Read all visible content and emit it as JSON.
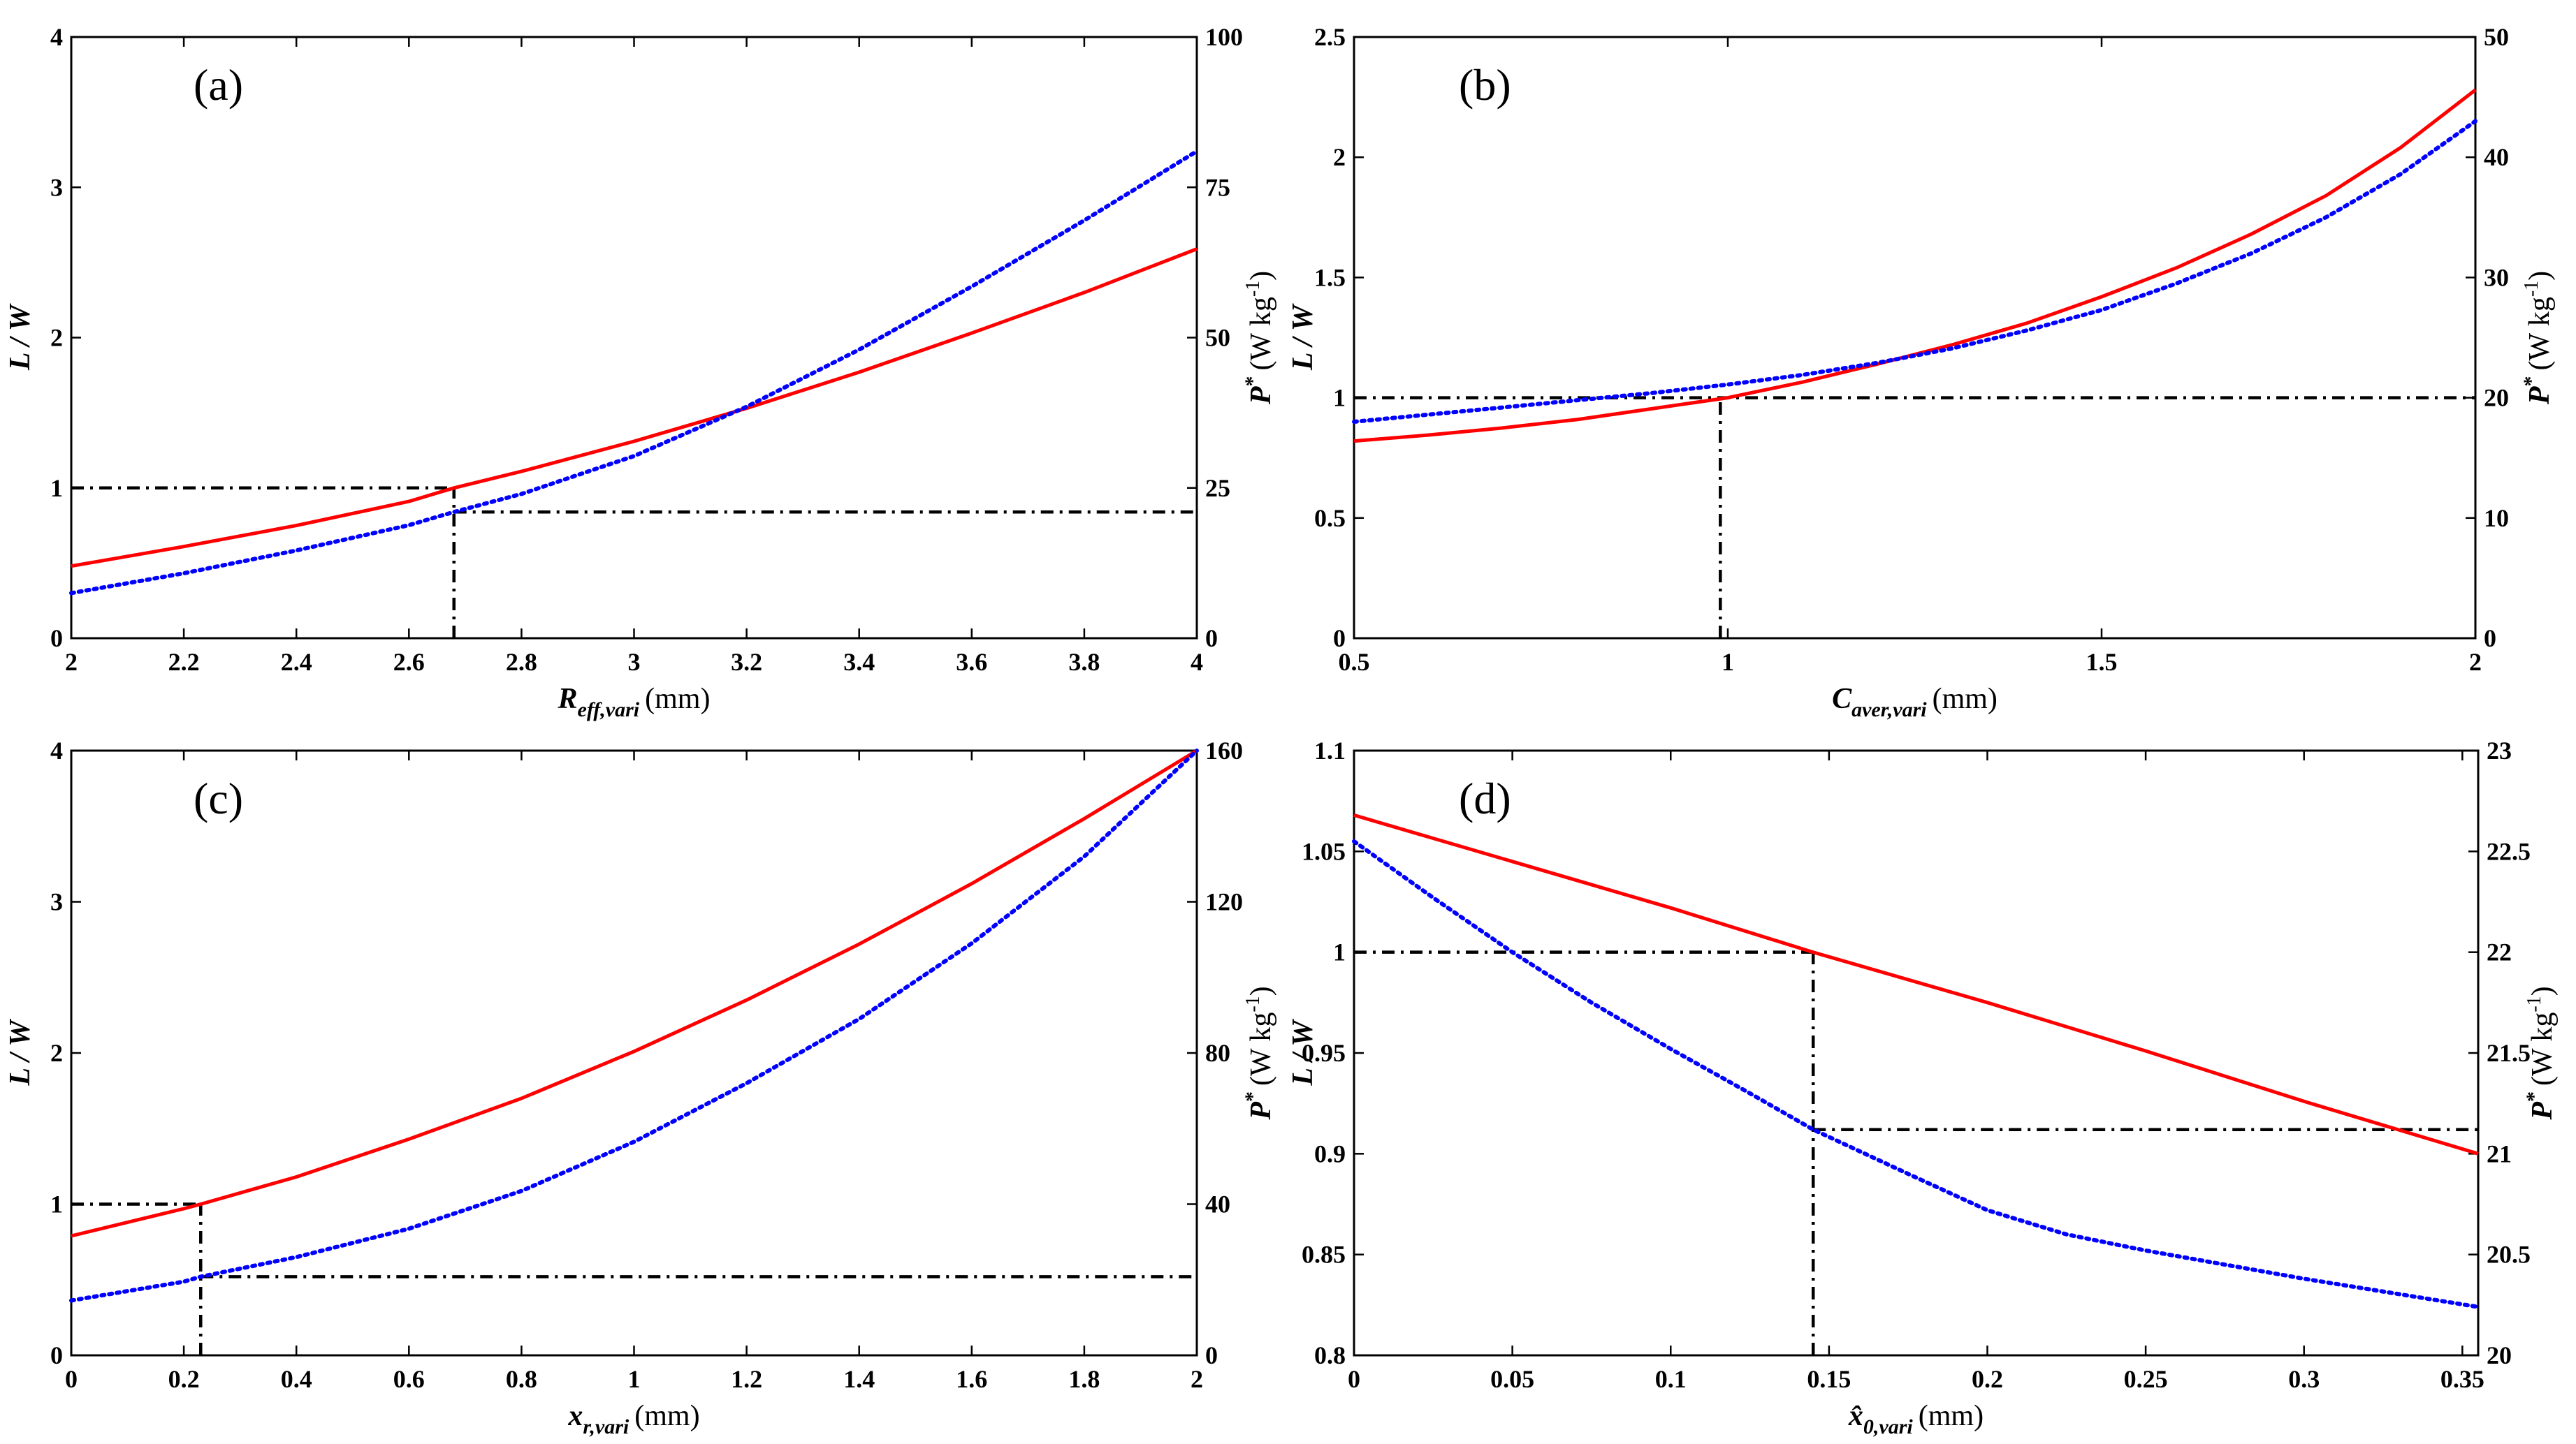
{
  "chart_data": [
    {
      "type": "line",
      "label": "(a)",
      "xlabel": {
        "main": "R",
        "sub": "eff,vari",
        "unit": "(mm)"
      },
      "ylabel_left": "L / W",
      "ylabel_right": {
        "main": "P",
        "sup": "*",
        "unit": "(W kg",
        "unit_sup": "-1",
        "unit_end": ")"
      },
      "xlim": [
        2,
        4
      ],
      "ylim_left": [
        0,
        4
      ],
      "ylim_right": [
        0,
        100
      ],
      "x_ticks": [
        "2",
        "2.2",
        "2.4",
        "2.6",
        "2.8",
        "3",
        "3.2",
        "3.4",
        "3.6",
        "3.8",
        "4"
      ],
      "x_tick_values": [
        2,
        2.2,
        2.4,
        2.6,
        2.8,
        3,
        3.2,
        3.4,
        3.6,
        3.8,
        4
      ],
      "y_ticks_left": [
        "0",
        "1",
        "2",
        "3",
        "4"
      ],
      "y_tick_values_left": [
        0,
        1,
        2,
        3,
        4
      ],
      "y_ticks_right": [
        "0",
        "25",
        "50",
        "75",
        "100"
      ],
      "y_tick_values_right": [
        0,
        25,
        50,
        75,
        100
      ],
      "series": [
        {
          "name": "L / W",
          "axis": "left",
          "style": "solid",
          "color": "#ff0000",
          "x": [
            2,
            2.2,
            2.4,
            2.6,
            2.68,
            2.8,
            3.0,
            3.2,
            3.4,
            3.6,
            3.8,
            4.0
          ],
          "y": [
            0.48,
            0.61,
            0.75,
            0.91,
            1.0,
            1.11,
            1.31,
            1.53,
            1.77,
            2.03,
            2.3,
            2.59
          ]
        },
        {
          "name": "P*",
          "axis": "right",
          "style": "dotted",
          "color": "#0000ff",
          "x": [
            2,
            2.2,
            2.4,
            2.6,
            2.68,
            2.8,
            3.0,
            3.2,
            3.4,
            3.6,
            3.8,
            4.0
          ],
          "y": [
            7.5,
            10.8,
            14.6,
            18.8,
            21.0,
            24.0,
            30.3,
            38.5,
            48.0,
            58.5,
            69.5,
            81.0
          ]
        }
      ],
      "reference_lines": [
        {
          "axis": "left",
          "x0": 2,
          "y0": 1.0,
          "x1": 2.68,
          "y1": 1.0
        },
        {
          "axis": "right",
          "x0": 2.68,
          "y0": 21.0,
          "x1": 4.0,
          "y1": 21.0
        },
        {
          "axis": "left",
          "x0": 2.68,
          "y0": 0,
          "x1": 2.68,
          "y1": 1.0
        }
      ]
    },
    {
      "type": "line",
      "label": "(b)",
      "xlabel": {
        "main": "C",
        "sub": "aver,vari",
        "unit": "(mm)"
      },
      "ylabel_left": "L / W",
      "ylabel_right": {
        "main": "P",
        "sup": "*",
        "unit": "(W kg",
        "unit_sup": "-1",
        "unit_end": ")"
      },
      "xlim": [
        0.5,
        2
      ],
      "ylim_left": [
        0,
        2.5
      ],
      "ylim_right": [
        0,
        50
      ],
      "x_ticks": [
        "0.5",
        "1",
        "1.5",
        "2"
      ],
      "x_tick_values": [
        0.5,
        1,
        1.5,
        2
      ],
      "y_ticks_left": [
        "0",
        "0.5",
        "1",
        "1.5",
        "2",
        "2.5"
      ],
      "y_tick_values_left": [
        0,
        0.5,
        1,
        1.5,
        2,
        2.5
      ],
      "y_ticks_right": [
        "0",
        "10",
        "20",
        "30",
        "40",
        "50"
      ],
      "y_tick_values_right": [
        0,
        10,
        20,
        30,
        40,
        50
      ],
      "series": [
        {
          "name": "L / W",
          "axis": "left",
          "style": "solid",
          "color": "#ff0000",
          "x": [
            0.5,
            0.6,
            0.7,
            0.8,
            0.9,
            1.0,
            1.1,
            1.2,
            1.3,
            1.4,
            1.5,
            1.6,
            1.7,
            1.8,
            1.9,
            2.0
          ],
          "y": [
            0.82,
            0.845,
            0.875,
            0.91,
            0.955,
            1.0,
            1.065,
            1.14,
            1.22,
            1.31,
            1.42,
            1.54,
            1.68,
            1.84,
            2.04,
            2.28
          ]
        },
        {
          "name": "P*",
          "axis": "right",
          "style": "dotted",
          "color": "#0000ff",
          "x": [
            0.5,
            0.6,
            0.7,
            0.8,
            0.9,
            1.0,
            1.1,
            1.2,
            1.3,
            1.4,
            1.5,
            1.6,
            1.7,
            1.8,
            1.9,
            2.0
          ],
          "y": [
            18.0,
            18.6,
            19.2,
            19.8,
            20.4,
            21.1,
            21.9,
            22.9,
            24.1,
            25.6,
            27.3,
            29.5,
            32.0,
            35.0,
            38.6,
            43.0
          ]
        }
      ],
      "reference_lines": [
        {
          "axis": "left",
          "x0": 0.5,
          "y0": 1.0,
          "x1": 2.0,
          "y1": 1.0
        },
        {
          "axis": "left",
          "x0": 0.99,
          "y0": 0,
          "x1": 0.99,
          "y1": 1.0
        }
      ]
    },
    {
      "type": "line",
      "label": "(c)",
      "xlabel": {
        "main": "x",
        "sub": "r,vari",
        "unit": "(mm)"
      },
      "ylabel_left": "L / W",
      "ylabel_right": {
        "main": "P",
        "sup": "*",
        "unit": "(W kg",
        "unit_sup": "-1",
        "unit_end": ")"
      },
      "xlim": [
        0,
        2
      ],
      "ylim_left": [
        0,
        4
      ],
      "ylim_right": [
        0,
        160
      ],
      "x_ticks": [
        "0",
        "0.2",
        "0.4",
        "0.6",
        "0.8",
        "1",
        "1.2",
        "1.4",
        "1.6",
        "1.8",
        "2"
      ],
      "x_tick_values": [
        0,
        0.2,
        0.4,
        0.6,
        0.8,
        1,
        1.2,
        1.4,
        1.6,
        1.8,
        2
      ],
      "y_ticks_left": [
        "0",
        "1",
        "2",
        "3",
        "4"
      ],
      "y_tick_values_left": [
        0,
        1,
        2,
        3,
        4
      ],
      "y_ticks_right": [
        "0",
        "40",
        "80",
        "120",
        "160"
      ],
      "y_tick_values_right": [
        0,
        40,
        80,
        120,
        160
      ],
      "series": [
        {
          "name": "L / W",
          "axis": "left",
          "style": "solid",
          "color": "#ff0000",
          "x": [
            0,
            0.2,
            0.23,
            0.4,
            0.6,
            0.8,
            1.0,
            1.2,
            1.4,
            1.6,
            1.8,
            2.0
          ],
          "y": [
            0.79,
            0.97,
            1.0,
            1.18,
            1.43,
            1.7,
            2.01,
            2.35,
            2.72,
            3.12,
            3.55,
            4.0
          ]
        },
        {
          "name": "P*",
          "axis": "right",
          "style": "dotted",
          "color": "#0000ff",
          "x": [
            0,
            0.2,
            0.23,
            0.4,
            0.6,
            0.8,
            1.0,
            1.2,
            1.4,
            1.6,
            1.8,
            2.0
          ],
          "y": [
            14.5,
            19.5,
            20.8,
            26.0,
            33.5,
            43.5,
            56.5,
            72.0,
            89.0,
            109.0,
            132.0,
            160.0
          ]
        }
      ],
      "reference_lines": [
        {
          "axis": "left",
          "x0": 0,
          "y0": 1.0,
          "x1": 0.23,
          "y1": 1.0
        },
        {
          "axis": "right",
          "x0": 0.23,
          "y0": 20.8,
          "x1": 2.0,
          "y1": 20.8
        },
        {
          "axis": "left",
          "x0": 0.23,
          "y0": 0,
          "x1": 0.23,
          "y1": 1.0
        }
      ]
    },
    {
      "type": "line",
      "label": "(d)",
      "xlabel": {
        "main": "x̂",
        "sub": "0,vari",
        "unit": "(mm)"
      },
      "ylabel_left": "L / W",
      "ylabel_right": {
        "main": "P",
        "sup": "*",
        "unit": "(W kg",
        "unit_sup": "-1",
        "unit_end": ")"
      },
      "xlim": [
        0,
        0.355
      ],
      "ylim_left": [
        0.8,
        1.1
      ],
      "ylim_right": [
        20,
        23
      ],
      "x_ticks": [
        "0",
        "0.05",
        "0.1",
        "0.15",
        "0.2",
        "0.25",
        "0.3",
        "0.35"
      ],
      "x_tick_values": [
        0,
        0.05,
        0.1,
        0.15,
        0.2,
        0.25,
        0.3,
        0.35
      ],
      "y_ticks_left": [
        "0.8",
        "0.85",
        "0.9",
        "0.95",
        "1",
        "1.05",
        "1.1"
      ],
      "y_tick_values_left": [
        0.8,
        0.85,
        0.9,
        0.95,
        1.0,
        1.05,
        1.1
      ],
      "y_ticks_right": [
        "20",
        "20.5",
        "21",
        "21.5",
        "22",
        "22.5",
        "23"
      ],
      "y_tick_values_right": [
        20,
        20.5,
        21,
        21.5,
        22,
        22.5,
        23
      ],
      "series": [
        {
          "name": "L / W",
          "axis": "left",
          "style": "solid",
          "color": "#ff0000",
          "x": [
            0,
            0.05,
            0.1,
            0.145,
            0.2,
            0.25,
            0.3,
            0.355
          ],
          "y": [
            1.068,
            1.045,
            1.022,
            1.0,
            0.975,
            0.951,
            0.926,
            0.9
          ]
        },
        {
          "name": "P*",
          "axis": "right",
          "style": "dotted",
          "color": "#0000ff",
          "x": [
            0,
            0.025,
            0.05,
            0.075,
            0.1,
            0.125,
            0.145,
            0.175,
            0.2,
            0.225,
            0.25,
            0.3,
            0.355
          ],
          "y": [
            22.55,
            22.27,
            22.0,
            21.75,
            21.52,
            21.3,
            21.12,
            20.9,
            20.72,
            20.6,
            20.52,
            20.38,
            20.24
          ]
        }
      ],
      "reference_lines": [
        {
          "axis": "left",
          "x0": 0,
          "y0": 1.0,
          "x1": 0.145,
          "y1": 1.0
        },
        {
          "axis": "left",
          "x0": 0.145,
          "y0": 0.8,
          "x1": 0.145,
          "y1": 1.0
        },
        {
          "axis": "right",
          "x0": 0.145,
          "y0": 21.12,
          "x1": 0.355,
          "y1": 21.12
        }
      ]
    }
  ]
}
